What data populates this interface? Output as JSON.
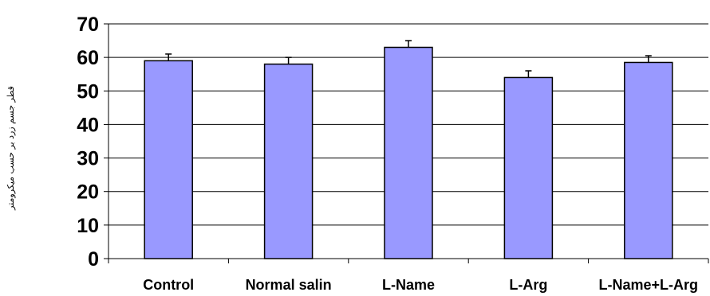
{
  "chart_data": {
    "type": "bar",
    "title": "",
    "xlabel": "",
    "ylabel": "قطر جسم زرد بر حسب میکرومتر",
    "categories": [
      "Control",
      "Normal salin",
      "L-Name",
      "L-Arg",
      "L-Name+L-Arg"
    ],
    "values": [
      59,
      58,
      63,
      54,
      58.5
    ],
    "errors": [
      2,
      2,
      2,
      2,
      2
    ],
    "ylim": [
      0,
      70
    ],
    "yticks": [
      0,
      10,
      20,
      30,
      40,
      50,
      60,
      70
    ],
    "grid": true,
    "legend": "none",
    "colors": {
      "bar_fill": "#9999ff",
      "bar_stroke": "#000000",
      "grid": "#000000",
      "background": "#ffffff"
    }
  }
}
